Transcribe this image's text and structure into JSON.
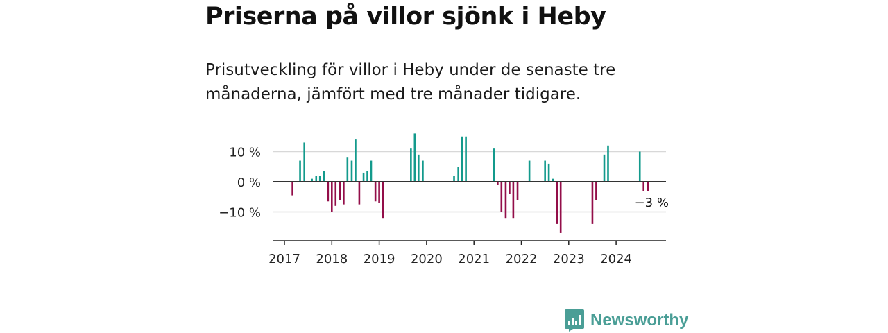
{
  "header": {
    "title": "Priserna på villor sjönk i Heby",
    "subtitle": "Prisutveckling för villor i Heby under de senaste tre månaderna, jämfört med tre månader tidigare."
  },
  "brand": {
    "name": "Newsworthy",
    "color": "#4a9e96",
    "icon": "chart-bubble-icon"
  },
  "chart_data": {
    "type": "bar",
    "unit": "%",
    "y_ticks": [
      10,
      0,
      -10
    ],
    "y_tick_labels": [
      "10 %",
      "0 %",
      "−10 %"
    ],
    "ylim": [
      -20,
      18
    ],
    "x_ticks": [
      2017,
      2018,
      2019,
      2020,
      2021,
      2022,
      2023,
      2024
    ],
    "xlim": [
      2016.75,
      2024.85
    ],
    "grid": true,
    "colors": {
      "positive": "#139a8c",
      "negative": "#930e49",
      "grid": "#d8d8d8",
      "axis": "#333333"
    },
    "annotation": {
      "text": "−3 %",
      "x": 2024.72,
      "y": -3
    },
    "series": [
      {
        "x": [
          2017.17,
          2017.33,
          2017.42,
          2017.58,
          2017.67,
          2017.75,
          2017.83,
          2017.92,
          2018.0,
          2018.08,
          2018.17,
          2018.25,
          2018.33,
          2018.42,
          2018.5,
          2018.58,
          2018.67,
          2018.75,
          2018.83,
          2018.92,
          2019.0,
          2019.08,
          2019.67,
          2019.75,
          2019.83,
          2019.92,
          2020.58,
          2020.67,
          2020.75,
          2020.83,
          2021.42,
          2021.5,
          2021.58,
          2021.67,
          2021.75,
          2021.83,
          2021.92,
          2022.17,
          2022.5,
          2022.58,
          2022.67,
          2022.75,
          2022.83,
          2023.5,
          2023.58,
          2023.75,
          2023.83,
          2024.5,
          2024.58,
          2024.67
        ],
        "values": [
          -4.5,
          7,
          13,
          1,
          2,
          2,
          3.5,
          -6.5,
          -10,
          -8,
          -6,
          -7.5,
          8,
          7,
          14,
          -7.5,
          3,
          3.5,
          7,
          -6.5,
          -7,
          -12,
          11,
          16,
          9,
          7,
          2,
          5,
          15,
          15,
          11,
          -1,
          -10,
          -12,
          -4,
          -12,
          -6,
          7,
          7,
          6,
          1,
          -14,
          -17,
          -14,
          -6,
          9,
          12,
          10,
          -3,
          -3
        ]
      }
    ]
  }
}
